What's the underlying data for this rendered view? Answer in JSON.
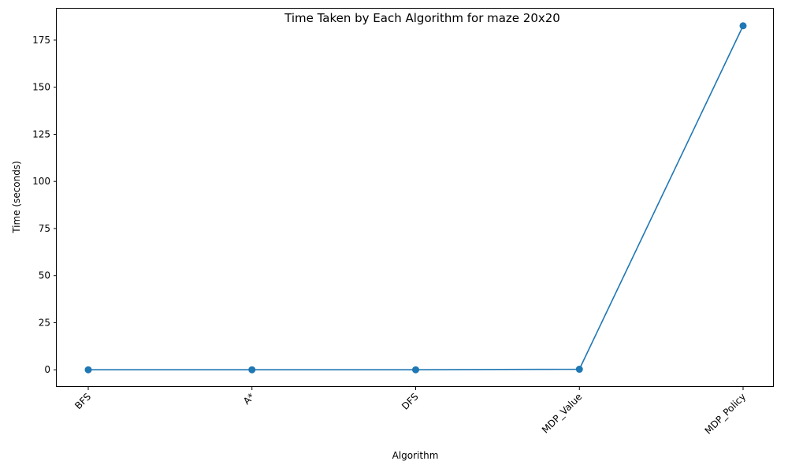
{
  "chart_data": {
    "type": "line",
    "title": "Time Taken by Each Algorithm for maze 20x20",
    "xlabel": "Algorithm",
    "ylabel": "Time (seconds)",
    "categories": [
      "BFS",
      "A*",
      "DFS",
      "MDP_Value",
      "MDP_Policy"
    ],
    "values": [
      0.01,
      0.01,
      0.02,
      0.3,
      182.6
    ],
    "yticks": [
      0,
      25,
      50,
      75,
      100,
      125,
      150,
      175
    ],
    "ylim": [
      -9.1,
      191.7
    ],
    "grid": false,
    "marker": "circle",
    "color": "#1f77b4"
  }
}
